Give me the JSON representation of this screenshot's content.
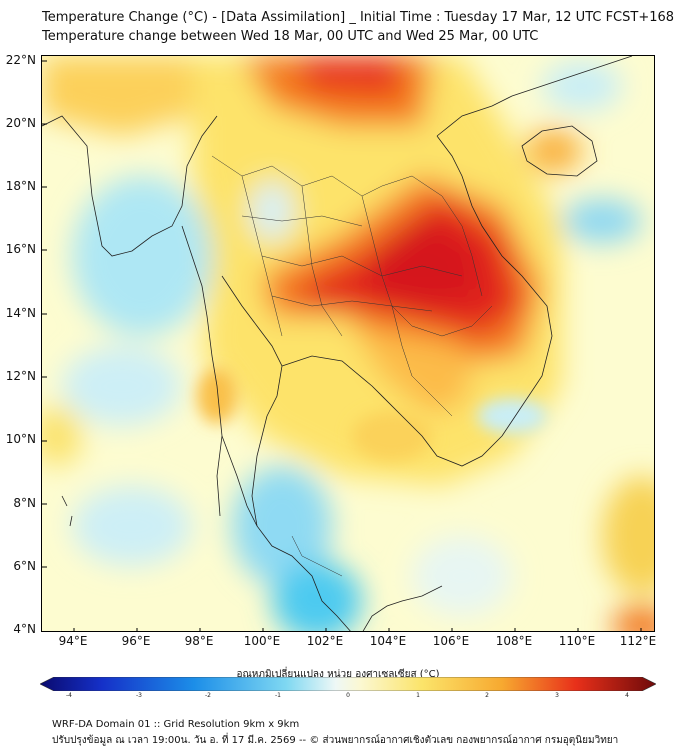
{
  "title": {
    "line1": "Temperature Change (°C) - [Data Assimilation] _ Initial Time : Tuesday 17 Mar, 12 UTC FCST+168",
    "line2": "Temperature change between Wed 18 Mar, 00 UTC and Wed 25 Mar, 00 UTC"
  },
  "map": {
    "lat_labels": [
      "22°N",
      "20°N",
      "18°N",
      "16°N",
      "14°N",
      "12°N",
      "10°N",
      "8°N",
      "6°N",
      "4°N"
    ],
    "lon_labels": [
      "94°E",
      "96°E",
      "98°E",
      "100°E",
      "102°E",
      "104°E",
      "106°E",
      "108°E",
      "110°E",
      "112°E"
    ],
    "lon_range": [
      93,
      113
    ],
    "lat_range": [
      4,
      22.2
    ],
    "hot_spot": {
      "lon": 104.5,
      "lat": 15.5,
      "value": 3.2
    },
    "cool_spot": {
      "lon": 102,
      "lat": 6,
      "value": -1.2
    }
  },
  "colorbar": {
    "title": "อุณหภูมิเปลี่ยนแปลง หน่วย องศาเซลเซียส (°C)",
    "ticks": [
      "-4",
      "-3",
      "-2",
      "-1",
      "0",
      "1",
      "2",
      "3",
      "4"
    ],
    "min": -4,
    "max": 4
  },
  "footer": {
    "line1": "WRF-DA Domain 01 :: Grid Resolution 9km x 9km",
    "line2": "ปรับปรุงข้อมูล ณ เวลา 19:00น. วัน อ. ที่ 17 มี.ค. 2569 -- © ส่วนพยากรณ์อากาศเชิงตัวเลข กองพยากรณ์อากาศ กรมอุตุนิยมวิทยา"
  }
}
